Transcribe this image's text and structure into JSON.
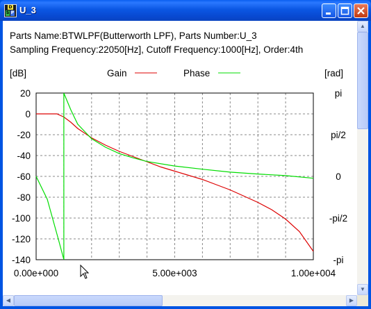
{
  "window": {
    "title": "U_3",
    "icon": "dsp-icon"
  },
  "info": {
    "line1": "Parts Name:BTWLPF(Butterworth LPF), Parts Number:U_3",
    "line2": "Sampling Frequency:22050[Hz], Cutoff Frequency:1000[Hz], Order:4th"
  },
  "chart_data": {
    "type": "line",
    "left_unit": "[dB]",
    "right_unit": "[rad]",
    "legend": [
      {
        "name": "Gain",
        "color": "#dd0000"
      },
      {
        "name": "Phase",
        "color": "#00dd00"
      }
    ],
    "y_left_ticks": [
      "20",
      "0",
      "-20",
      "-40",
      "-60",
      "-80",
      "-100",
      "-120",
      "-140"
    ],
    "y_left_range": [
      -140,
      20
    ],
    "y_right_ticks": [
      "pi",
      "pi/2",
      "0",
      "-pi/2",
      "-pi"
    ],
    "y_right_range": [
      -3.14159,
      3.14159
    ],
    "x_ticks": [
      "0.00e+000",
      "5.00e+003",
      "1.00e+004"
    ],
    "x_range": [
      0,
      10000
    ],
    "grid": true,
    "series": [
      {
        "name": "Gain",
        "axis": "left",
        "color": "#dd0000",
        "x": [
          0,
          750,
          1000,
          1250,
          1500,
          2000,
          2500,
          3000,
          3500,
          4000,
          4500,
          5000,
          5500,
          6000,
          6500,
          7000,
          7500,
          8000,
          8500,
          9000,
          9500,
          10000
        ],
        "y": [
          0,
          0,
          -3,
          -8,
          -14,
          -23,
          -30,
          -36,
          -41,
          -46,
          -51,
          -55,
          -59,
          -63,
          -68,
          -73,
          -79,
          -85,
          -92,
          -101,
          -113,
          -132
        ]
      },
      {
        "name": "Phase",
        "axis": "right",
        "color": "#00dd00",
        "x": [
          0,
          400,
          800,
          1000,
          1001,
          1250,
          1500,
          2000,
          2500,
          3000,
          3500,
          4000,
          5000,
          6000,
          7000,
          8000,
          9000,
          10000
        ],
        "y": [
          0,
          -0.86,
          -2.36,
          -3.14,
          3.14,
          2.51,
          1.97,
          1.42,
          1.1,
          0.86,
          0.7,
          0.56,
          0.39,
          0.27,
          0.16,
          0.09,
          0.03,
          -0.07
        ]
      }
    ]
  }
}
